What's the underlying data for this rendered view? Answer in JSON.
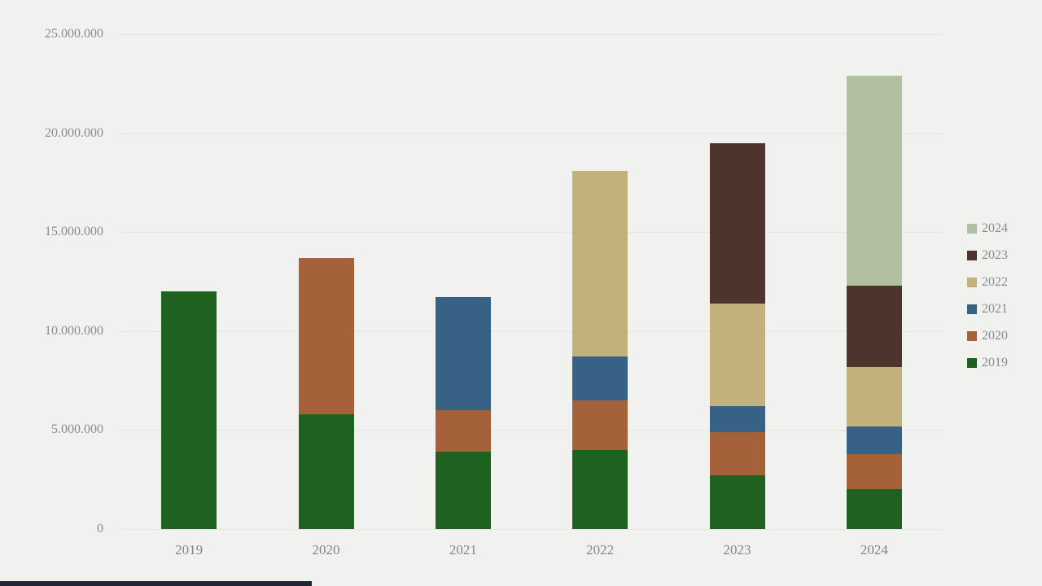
{
  "window": {
    "background_color": "#f1f1f0",
    "gridline_color": "#e4e4e2",
    "axis_text_color": "#8b8b8b",
    "bottom_strip_color": "#1f2637"
  },
  "chart_data": {
    "type": "bar",
    "stacked": true,
    "title": "",
    "xlabel": "",
    "ylabel": "",
    "grid": true,
    "legend_position": "right",
    "categories": [
      "2019",
      "2020",
      "2021",
      "2022",
      "2023",
      "2024"
    ],
    "series": [
      {
        "name": "2019",
        "color": "#1f6120",
        "values": [
          12000000,
          5800000,
          3900000,
          4000000,
          2700000,
          2000000
        ]
      },
      {
        "name": "2020",
        "color": "#a4613a",
        "values": [
          0,
          7900000,
          2100000,
          2500000,
          2200000,
          1800000
        ]
      },
      {
        "name": "2021",
        "color": "#376285",
        "values": [
          0,
          0,
          5700000,
          2200000,
          1300000,
          1400000
        ]
      },
      {
        "name": "2022",
        "color": "#c2b17b",
        "values": [
          0,
          0,
          0,
          9400000,
          5200000,
          3000000
        ]
      },
      {
        "name": "2023",
        "color": "#4d342c",
        "values": [
          0,
          0,
          0,
          0,
          8100000,
          4100000
        ]
      },
      {
        "name": "2024",
        "color": "#b1c0a0",
        "values": [
          0,
          0,
          0,
          0,
          0,
          10600000
        ]
      }
    ],
    "stack_totals": [
      12000000,
      13700000,
      11700000,
      18100000,
      19500000,
      22900000
    ],
    "ylim": [
      0,
      25000000
    ],
    "y_ticks": [
      {
        "value": 0,
        "label": "0"
      },
      {
        "value": 5000000,
        "label": "5.000.000"
      },
      {
        "value": 10000000,
        "label": "10.000.000"
      },
      {
        "value": 15000000,
        "label": "15.000.000"
      },
      {
        "value": 20000000,
        "label": "20.000.000"
      },
      {
        "value": 25000000,
        "label": "25.000.000"
      }
    ],
    "legend_items_top_to_bottom": [
      "2024",
      "2023",
      "2022",
      "2021",
      "2020",
      "2019"
    ]
  }
}
